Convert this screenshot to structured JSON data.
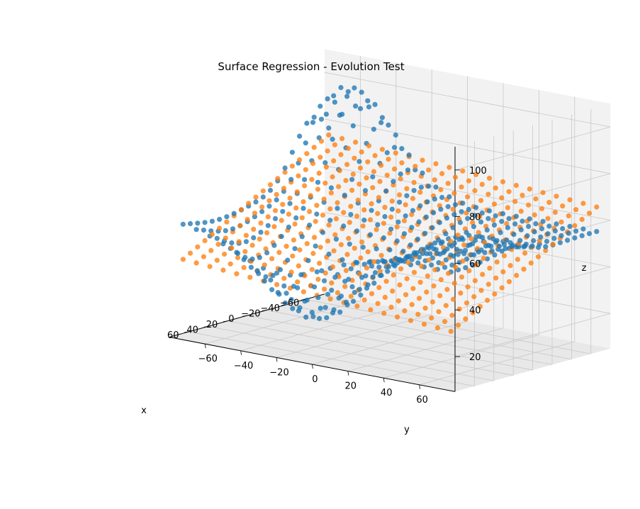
{
  "chart_data": {
    "type": "scatter",
    "projection": "3d",
    "title": "Surface Regression - Evolution Test",
    "xlabel": "x",
    "ylabel": "y",
    "zlabel": "z",
    "xlim": [
      -80,
      80
    ],
    "ylim": [
      -80,
      80
    ],
    "zlim": [
      5,
      110
    ],
    "xticks": [
      "−60",
      "−40",
      "−20",
      "0",
      "20",
      "40",
      "60"
    ],
    "yticks": [
      "−60",
      "−40",
      "−20",
      "0",
      "20",
      "40",
      "60"
    ],
    "zticks": [
      "20",
      "40",
      "60",
      "80",
      "100"
    ],
    "grid": true,
    "series": [
      {
        "marker": "circle",
        "color": "#1f77b4",
        "kind": "observed data",
        "x_range": [
          -75,
          75
        ],
        "y_range": [
          -75,
          75
        ],
        "grid_step": 7.5,
        "surface": "z = 55 + 45*exp(-((x+60)^2+(y+55)^2)/900) - 38*exp(-((x-40)^2+(y+20)^2)/1300) - 12*exp(-((x+10)^2+(y-35)^2)/800) + 10*exp(-((x-10)^2+(y-50)^2)/700)"
      },
      {
        "marker": "circle",
        "color": "#ff7f0e",
        "kind": "fitted plane",
        "x_range": [
          -75,
          75
        ],
        "y_range": [
          -75,
          75
        ],
        "grid_step": 7.5,
        "surface": "z = 52 - 0.24*x - 0.06*y"
      }
    ]
  },
  "colors": {
    "observed": "#1f77b4",
    "fitted": "#ff7f0e",
    "pane": "#f2f2f2",
    "grid": "#c8c8c8"
  }
}
